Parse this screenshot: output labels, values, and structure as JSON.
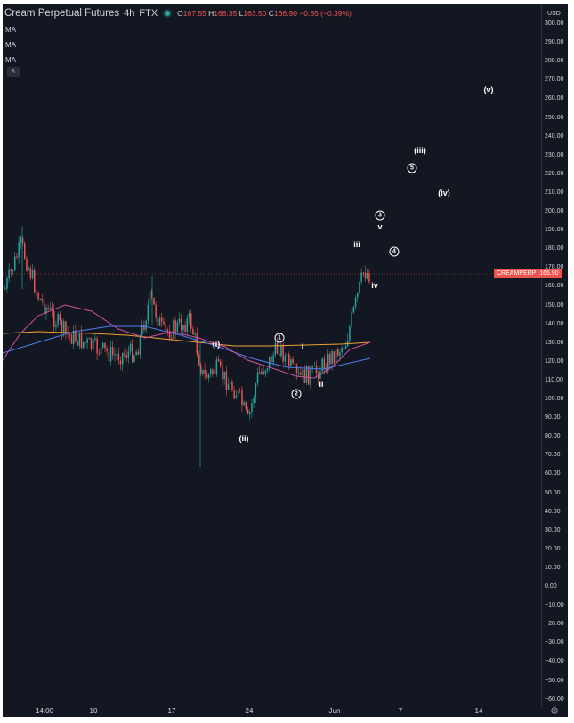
{
  "header": {
    "title": "Cream Perpetual Futures",
    "interval": "4h",
    "exchange": "FTX",
    "open_label": "O",
    "open": "167.55",
    "high_label": "H",
    "high": "168.35",
    "low_label": "L",
    "low": "163.50",
    "close_label": "C",
    "close": "166.90",
    "change": "−0.65 (−0.39%)"
  },
  "indicators": [
    "MA",
    "MA",
    "MA"
  ],
  "collapse_icon": "˄",
  "price_axis": {
    "currency": "USD",
    "ticks": [
      "300.00",
      "290.00",
      "280.00",
      "270.00",
      "260.00",
      "250.00",
      "240.00",
      "230.00",
      "220.00",
      "210.00",
      "200.00",
      "190.00",
      "180.00",
      "170.00",
      "160.00",
      "150.00",
      "140.00",
      "130.00",
      "120.00",
      "110.00",
      "100.00",
      "90.00",
      "80.00",
      "70.00",
      "60.00",
      "50.00",
      "40.00",
      "30.00",
      "20.00",
      "10.00",
      "0.00",
      "−10.00",
      "−20.00",
      "−30.00",
      "−40.00",
      "−50.00",
      "−60.00"
    ]
  },
  "time_axis": {
    "ticks": [
      "14:00",
      "10",
      "17",
      "24",
      "Jun",
      "7",
      "14"
    ]
  },
  "price_tag": {
    "symbol": "CREAMPERP",
    "price": "166.90"
  },
  "wave_labels": [
    "(v)",
    "(iii)",
    "5",
    "(iv)",
    "3",
    "v",
    "iii",
    "4",
    "iv",
    "(i)",
    "1",
    "i",
    "2",
    "ii",
    "(ii)"
  ],
  "colors": {
    "background": "#131722",
    "up": "#26a69a",
    "down": "#ef5350",
    "ma_orange": "#f0a030",
    "ma_blue": "#4f7df0",
    "ma_pink": "#d050a0"
  }
}
